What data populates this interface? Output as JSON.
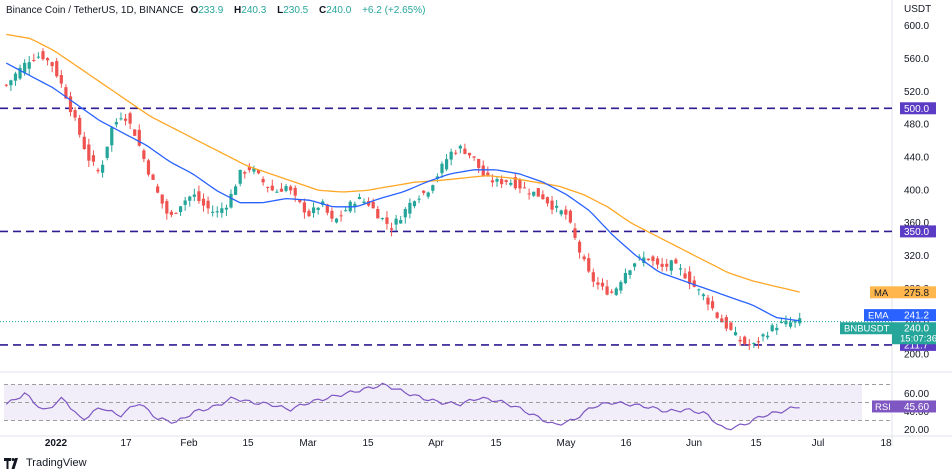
{
  "header": {
    "symbol": "Binance Coin / TetherUS, 1D, BINANCE",
    "open_label": "O",
    "open": "233.9",
    "high_label": "H",
    "high": "240.3",
    "low_label": "L",
    "low": "230.5",
    "close_label": "C",
    "close": "240.0",
    "change": "+6.2 (+2.65%)"
  },
  "currency": "USDT",
  "brand": "TradingView",
  "colors": {
    "up": "#26a69a",
    "down": "#ef5350",
    "ema": "#2962ff",
    "ma": "#ffa726",
    "level": "#311b92",
    "level_label_bg": "#5b3cc4",
    "rsi": "#7e57c2",
    "ma_label_bg": "#ffb74d",
    "ema_label_bg": "#2962ff",
    "price_label_bg": "#26a69a"
  },
  "chart_data": {
    "type": "candlestick",
    "y_ticks": [
      "600.0",
      "560.0",
      "520.0",
      "480.0",
      "440.0",
      "400.0",
      "360.0",
      "320.0",
      "280.0",
      "240.0",
      "200.0"
    ],
    "x_ticks": [
      "2022",
      "17",
      "Feb",
      "15",
      "Mar",
      "15",
      "Apr",
      "15",
      "May",
      "16",
      "Jun",
      "15",
      "Jul",
      "18"
    ],
    "ylim": [
      186,
      610
    ],
    "levels": [
      {
        "value": 500.0,
        "label": "500.0"
      },
      {
        "value": 350.0,
        "label": "350.0"
      },
      {
        "value": 211.7,
        "label": "211.7"
      }
    ],
    "price_labels": [
      {
        "name": "MA",
        "value": "275.8"
      },
      {
        "name": "EMA",
        "value": "241.2"
      },
      {
        "name": "BNBUSDT",
        "value": "240.0",
        "timer": "15:07:36"
      }
    ],
    "ema_anchor_values": [
      555,
      540,
      525,
      505,
      485,
      470,
      455,
      435,
      420,
      400,
      385,
      385,
      390,
      388,
      380,
      380,
      390,
      398,
      410,
      420,
      425,
      425,
      420,
      410,
      395,
      375,
      345,
      320,
      300,
      290,
      280,
      270,
      260,
      245,
      241
    ],
    "ma_anchor_values": [
      590,
      585,
      570,
      550,
      530,
      510,
      490,
      475,
      460,
      445,
      430,
      420,
      410,
      400,
      398,
      400,
      405,
      410,
      412,
      415,
      418,
      415,
      410,
      405,
      395,
      380,
      360,
      345,
      330,
      315,
      300,
      290,
      283,
      276
    ],
    "candle_count": 174,
    "close_anchor_values": [
      528,
      545,
      560,
      565,
      552,
      520,
      480,
      440,
      420,
      475,
      495,
      470,
      430,
      395,
      365,
      385,
      395,
      380,
      372,
      385,
      420,
      428,
      410,
      398,
      405,
      385,
      370,
      385,
      360,
      375,
      390,
      385,
      368,
      355,
      372,
      392,
      398,
      420,
      445,
      452,
      440,
      415,
      410,
      412,
      405,
      398,
      392,
      378,
      370,
      330,
      295,
      280,
      275,
      300,
      315,
      318,
      305,
      310,
      300,
      282,
      268,
      245,
      230,
      215,
      210,
      225,
      236,
      238,
      240
    ],
    "rsi": {
      "label": "RSI",
      "value": "45.60",
      "ticks": [
        "60.00",
        "40.00",
        "20.00"
      ],
      "ylim": [
        15,
        75
      ],
      "anchor_values": [
        48,
        60,
        40,
        55,
        30,
        45,
        35,
        50,
        32,
        28,
        40,
        45,
        55,
        50,
        48,
        42,
        50,
        55,
        60,
        65,
        70,
        62,
        55,
        50,
        48,
        55,
        52,
        45,
        35,
        25,
        30,
        45,
        50,
        48,
        45,
        40,
        42,
        38,
        20,
        25,
        35,
        40,
        46
      ]
    }
  }
}
